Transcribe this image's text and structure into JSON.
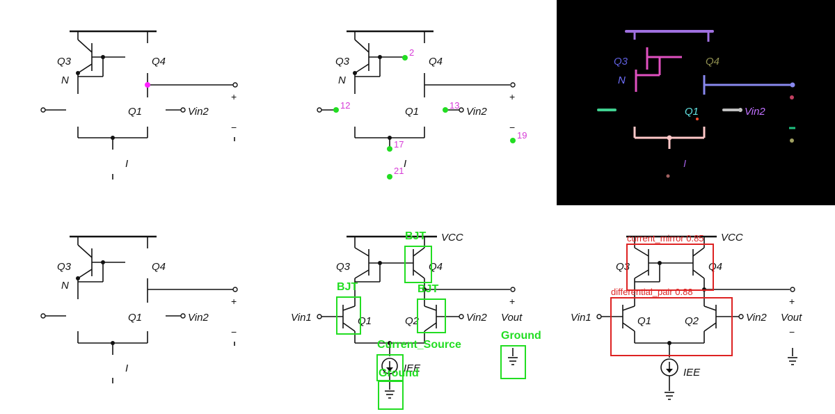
{
  "circuit_labels": {
    "q3": "Q3",
    "q4": "Q4",
    "q1": "Q1",
    "q2": "Q2",
    "n": "N",
    "i": "I",
    "vin1": "Vin1",
    "vin2": "Vin2",
    "vcc": "VCC",
    "vout": "Vout",
    "iee": "IEE",
    "plus": "+",
    "minus": "−"
  },
  "keypoint_numbers": [
    "2",
    "12",
    "13",
    "17",
    "19",
    "21"
  ],
  "detections": [
    {
      "label": "BJT"
    },
    {
      "label": "BJT"
    },
    {
      "label": "BJT"
    },
    {
      "label": "Current_Source"
    },
    {
      "label": "Ground"
    },
    {
      "label": "Ground"
    }
  ],
  "groups": [
    {
      "label": "current_mirror 0.85"
    },
    {
      "label": "differential_pair 0.88"
    }
  ],
  "colors": {
    "wire": "#111111",
    "keypoint": "#22dd22",
    "keypoint_label": "#d63ad6",
    "highlight_node": "#ff22ff",
    "detection_box": "#22dd22",
    "group_box": "#dd2222",
    "seg_background": "#000000"
  }
}
